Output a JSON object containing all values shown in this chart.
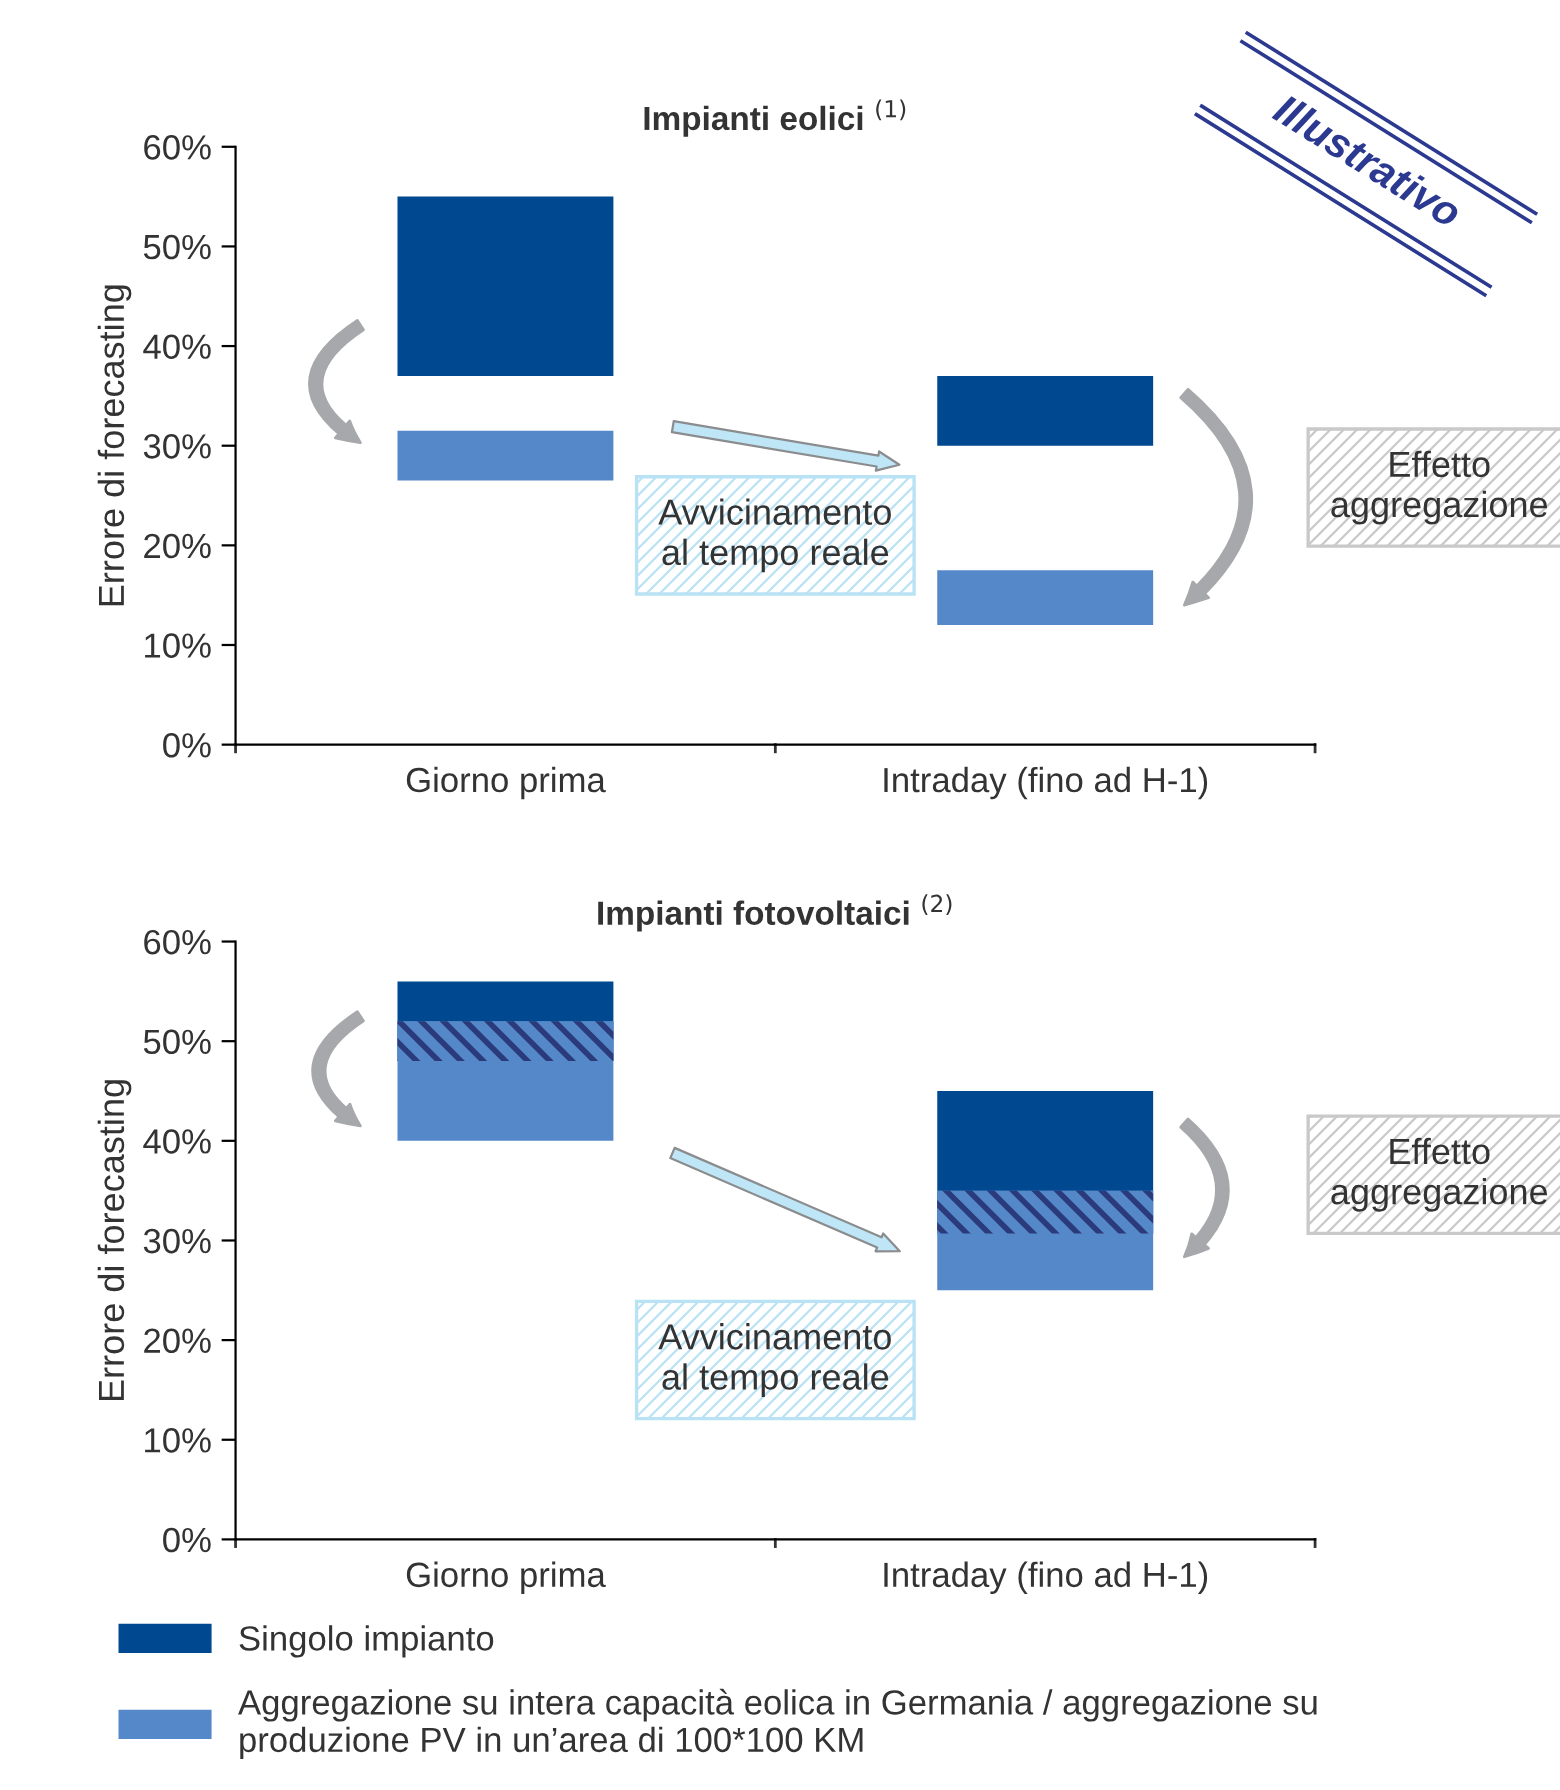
{
  "chart_data": [
    {
      "type": "bar",
      "title": "Impianti eolici $^{(1)}$",
      "ylabel": "Errore di forecasting",
      "categories": [
        "Giorno prima",
        "Intraday (fino ad H-1)"
      ],
      "series": [
        {
          "color": "#004990",
          "base": [
            37,
            30
          ],
          "values": [
            18,
            7
          ]
        },
        {
          "color": "#5588c8",
          "base": [
            26.5,
            12
          ],
          "values": [
            5,
            5.5
          ]
        }
      ],
      "ylim": [
        0,
        60
      ],
      "yticks": [
        {
          "value": 0,
          "label": "0%"
        },
        {
          "value": 10,
          "label": "10%"
        },
        {
          "value": 20,
          "label": "20%"
        },
        {
          "value": 30,
          "label": "30%"
        },
        {
          "value": 40,
          "label": "40%"
        },
        {
          "value": 50,
          "label": "50%"
        },
        {
          "value": 60,
          "label": "60%"
        }
      ],
      "grid": false,
      "legend": false,
      "annotations": [
        "Avvicinamento\nal tempo reale",
        "Effetto\naggregazione",
        "Illustrativo"
      ]
    },
    {
      "type": "bar",
      "title": "Impianti fotovoltaici $^{(2)}$",
      "ylabel": "Errore di forecasting",
      "categories": [
        "Giorno prima",
        "Intraday (fino ad H-1)"
      ],
      "series": [
        {
          "name": "Singolo impianto",
          "color": "#004990",
          "base": [
            48,
            30.7
          ],
          "values": [
            8,
            14.3
          ]
        },
        {
          "name": "Aggregazione su intera capacità eolica in Germania / aggregazione su produzione PV in un’area di 100*100 KM",
          "color": "#5588c8",
          "base": [
            40,
            25
          ],
          "values": [
            12,
            10
          ]
        }
      ],
      "ylim": [
        0,
        60
      ],
      "yticks": [
        {
          "value": 0,
          "label": "0%"
        },
        {
          "value": 10,
          "label": "10%"
        },
        {
          "value": 20,
          "label": "20%"
        },
        {
          "value": 30,
          "label": "30%"
        },
        {
          "value": 40,
          "label": "40%"
        },
        {
          "value": 50,
          "label": "50%"
        },
        {
          "value": 60,
          "label": "60%"
        }
      ],
      "grid": false,
      "legend": "bottom",
      "annotations": [
        "Avvicinamento\nal tempo reale",
        "Effetto\naggregazione"
      ]
    }
  ]
}
